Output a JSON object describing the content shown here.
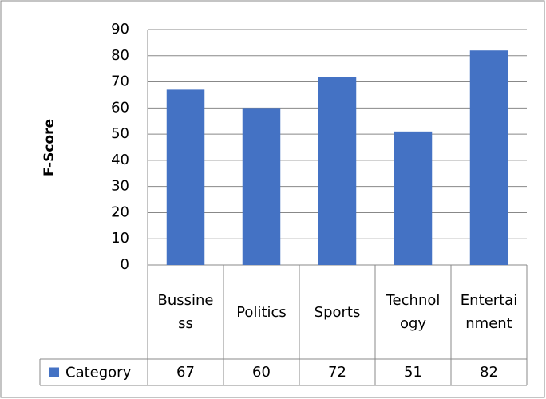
{
  "chart_data": {
    "type": "bar",
    "y_label": "F-Score",
    "categories": [
      "Bussiness",
      "Politics",
      "Sports",
      "Technology",
      "Entertainment"
    ],
    "series": [
      {
        "name": "Category",
        "color": "#4472c4",
        "values": [
          67,
          60,
          72,
          51,
          82
        ]
      }
    ],
    "ylim": [
      0,
      90
    ],
    "yticks": [
      0,
      10,
      20,
      30,
      40,
      50,
      60,
      70,
      80,
      90
    ],
    "grid": true,
    "legend": "bottom-left"
  }
}
